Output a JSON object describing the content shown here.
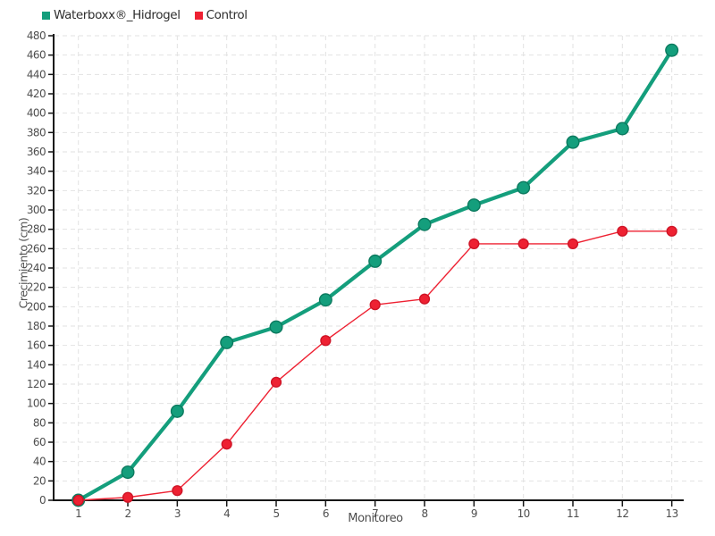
{
  "chart_data": {
    "type": "line",
    "title": "",
    "xlabel": "Monitoreo",
    "ylabel": "Crecimiento (cm)",
    "x": [
      1,
      2,
      3,
      4,
      5,
      6,
      7,
      8,
      9,
      10,
      11,
      12,
      13
    ],
    "xticks": [
      "1",
      "2",
      "3",
      "4",
      "5",
      "6",
      "7",
      "8",
      "9",
      "10",
      "11",
      "12",
      "13"
    ],
    "yticks": [
      0,
      20,
      40,
      60,
      80,
      100,
      120,
      140,
      160,
      180,
      200,
      220,
      240,
      260,
      280,
      300,
      320,
      340,
      360,
      380,
      400,
      420,
      440,
      460,
      480
    ],
    "ylim": [
      0,
      480
    ],
    "grid": true,
    "legend_position": "top-left",
    "series": [
      {
        "name": "Waterboxx®_Hidrogel",
        "color": "#149e7c",
        "marker_stroke": "#0c7a5f",
        "line_width": 4.2,
        "marker_radius": 6.8,
        "values": [
          0,
          29,
          92,
          163,
          179,
          207,
          247,
          285,
          305,
          323,
          370,
          384,
          465
        ]
      },
      {
        "name": "Control",
        "color": "#ee2132",
        "marker_stroke": "#cf1426",
        "line_width": 1.4,
        "marker_radius": 5.4,
        "values": [
          0,
          3,
          10,
          58,
          122,
          165,
          202,
          208,
          265,
          265,
          265,
          278,
          278
        ]
      }
    ],
    "style": {
      "grid_color": "#e2e2e2",
      "axis_color": "#161616",
      "tick_label_color": "#4e4e4e"
    }
  }
}
